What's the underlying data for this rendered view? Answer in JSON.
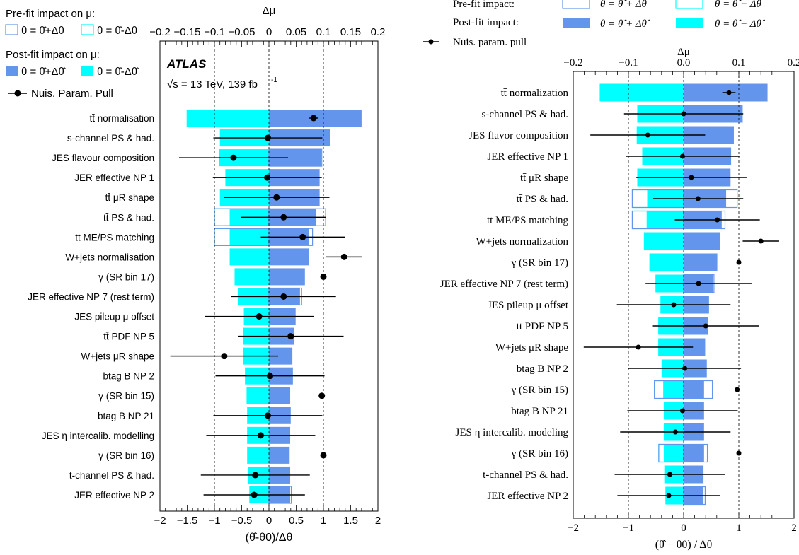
{
  "colors": {
    "postfit_plus": "#6495ED",
    "postfit_minus": "#00FFFF",
    "prefit_plus_border": "#6495ED",
    "prefit_minus_border": "#00FFFF",
    "pull_marker": "#000000"
  },
  "chart_data": [
    {
      "type": "bar",
      "panel": "left",
      "experiment_label": "ATLAS",
      "energy_label": "√s = 13 TeV, 139 fb",
      "energy_superscript": "-1",
      "legend": {
        "prefit_title": "Pre-fit impact on μ:",
        "prefit_plus": "θ = θ̂+Δθ",
        "prefit_minus": "θ = θ̂-Δθ",
        "postfit_title": "Post-fit impact on μ:",
        "postfit_plus": "θ = θ̂+Δθ̂",
        "postfit_minus": "θ = θ̂-Δθ̂",
        "pull": "Nuis. Param. Pull"
      },
      "xlabel_bottom": "(θ̂-θ0)/Δθ",
      "xlabel_top": "Δμ",
      "xlim_bottom": [
        -2,
        2
      ],
      "xlim_top": [
        -0.2,
        0.2
      ],
      "xticks_bottom": [
        "−2",
        "−1.5",
        "−1",
        "−0.5",
        "0",
        "0.5",
        "1",
        "1.5",
        "2"
      ],
      "xticks_top": [
        "−0.2",
        "−0.15",
        "−0.1",
        "−0.05",
        "0",
        "0.05",
        "0.1",
        "0.15",
        "0.2"
      ],
      "categories": [
        "tt̄ normalisation",
        "s-channel PS & had.",
        "JES flavour composition",
        "JER effective NP 1",
        "tt̄ μR shape",
        "tt̄ PS & had.",
        "tt̄ ME/PS matching",
        "W+jets normalisation",
        "γ (SR bin 17)",
        "JER effective NP 7 (rest term)",
        "JES pileup μ offset",
        "tt̄ PDF NP 5",
        "W+jets μR shape",
        "btag B NP 2",
        "γ (SR bin 15)",
        "btag B NP 21",
        "JES η intercalib. modelling",
        "γ (SR bin 16)",
        "t-channel PS & had.",
        "JER effective NP 2"
      ],
      "series": [
        {
          "name": "θ = θ̂+Δθ̂",
          "values": [
            0.17,
            0.113,
            0.095,
            0.093,
            0.093,
            0.086,
            0.073,
            0.073,
            0.066,
            0.057,
            0.049,
            0.046,
            0.043,
            0.044,
            0.039,
            0.04,
            0.039,
            0.038,
            0.039,
            0.039
          ]
        },
        {
          "name": "θ = θ̂-Δθ̂",
          "values": [
            -0.151,
            -0.09,
            -0.091,
            -0.08,
            -0.09,
            -0.072,
            -0.072,
            -0.072,
            -0.063,
            -0.056,
            -0.046,
            -0.048,
            -0.048,
            -0.044,
            -0.041,
            -0.04,
            -0.04,
            -0.04,
            -0.039,
            -0.036
          ]
        },
        {
          "name": "θ = θ̂+Δθ",
          "values": [
            0.17,
            0.113,
            0.097,
            0.093,
            0.093,
            0.104,
            0.08,
            0.073,
            0.066,
            0.06,
            0.049,
            0.046,
            0.043,
            0.044,
            0.039,
            0.04,
            0.039,
            0.038,
            0.039,
            0.041
          ]
        },
        {
          "name": "θ = θ̂-Δθ",
          "values": [
            -0.151,
            -0.09,
            -0.091,
            -0.08,
            -0.09,
            -0.1,
            -0.1,
            -0.072,
            -0.063,
            -0.056,
            -0.046,
            -0.048,
            -0.048,
            -0.044,
            -0.041,
            -0.04,
            -0.04,
            -0.04,
            -0.039,
            -0.036
          ]
        },
        {
          "name": "Nuis. Param. Pull",
          "values": [
            0.82,
            -0.02,
            -0.65,
            -0.03,
            0.14,
            0.27,
            0.62,
            1.38,
            1.0,
            0.27,
            -0.18,
            0.4,
            -0.82,
            0.02,
            0.97,
            -0.02,
            -0.15,
            1.0,
            -0.25,
            -0.27
          ]
        },
        {
          "name": "pull_error",
          "values": [
            0.09,
            1.0,
            1.0,
            1.0,
            0.97,
            0.78,
            0.77,
            0.33,
            0,
            0.96,
            1.0,
            0.97,
            0.99,
            1.0,
            0,
            1.0,
            1.0,
            0,
            1.0,
            0.93
          ]
        }
      ]
    },
    {
      "type": "bar",
      "panel": "right",
      "legend": {
        "prefit_title": "Pre-fit impact:",
        "prefit_plus": "θ = θ̂ + Δθ",
        "prefit_minus": "θ = θ̂ − Δθ",
        "postfit_title": "Post-fit impact:",
        "postfit_plus": "θ = θ̂ + Δθ̂",
        "postfit_minus": "θ = θ̂ − Δθ̂",
        "pull": "Nuis. param. pull"
      },
      "xlabel_bottom": "(θ̂ − θ0) / Δθ",
      "xlabel_top": "Δμ",
      "xlim_bottom": [
        -2,
        2
      ],
      "xlim_top": [
        -0.2,
        0.2
      ],
      "xticks_bottom": [
        "−2",
        "−1",
        "0",
        "1",
        "2"
      ],
      "xticks_top": [
        "−0.2",
        "−0.1",
        "0.0",
        "0.1",
        "0.2"
      ],
      "categories": [
        "tt̄ normalization",
        "s-channel PS & had.",
        "JES flavor composition",
        "JER effective NP 1",
        "tt̄ μR shape",
        "tt̄ PS & had.",
        "tt̄ ME/PS matching",
        "W+jets normalization",
        "γ (SR bin 17)",
        "JER effective NP 7 (rest term)",
        "JES pileup μ offset",
        "tt̄ PDF NP 5",
        "W+jets μR shape",
        "btag B NP 2",
        "γ (SR bin 15)",
        "btag B NP 21",
        "JES η intercalib. modeling",
        "γ (SR bin 16)",
        "t-channel PS & had.",
        "JER effective NP 2"
      ],
      "series": [
        {
          "name": "θ = θ̂ + Δθ̂",
          "values": [
            0.152,
            0.107,
            0.091,
            0.086,
            0.085,
            0.077,
            0.069,
            0.066,
            0.061,
            0.053,
            0.046,
            0.044,
            0.039,
            0.042,
            0.037,
            0.037,
            0.037,
            0.037,
            0.036,
            0.036
          ]
        },
        {
          "name": "θ = θ̂ − Δθ̂",
          "values": [
            -0.152,
            -0.084,
            -0.085,
            -0.075,
            -0.084,
            -0.066,
            -0.067,
            -0.072,
            -0.062,
            -0.051,
            -0.042,
            -0.046,
            -0.046,
            -0.04,
            -0.037,
            -0.036,
            -0.036,
            -0.036,
            -0.035,
            -0.033
          ]
        },
        {
          "name": "θ = θ̂ + Δθ",
          "values": [
            0.152,
            0.107,
            0.091,
            0.086,
            0.085,
            0.097,
            0.075,
            0.066,
            0.061,
            0.055,
            0.046,
            0.044,
            0.039,
            0.042,
            0.052,
            0.037,
            0.037,
            0.043,
            0.036,
            0.039
          ]
        },
        {
          "name": "θ = θ̂ − Δθ",
          "values": [
            -0.152,
            -0.084,
            -0.085,
            -0.075,
            -0.084,
            -0.093,
            -0.093,
            -0.072,
            -0.062,
            -0.051,
            -0.042,
            -0.046,
            -0.046,
            -0.04,
            -0.053,
            -0.036,
            -0.036,
            -0.045,
            -0.035,
            -0.033
          ]
        },
        {
          "name": "Nuis. param. pull",
          "values": [
            0.82,
            0.0,
            -0.65,
            -0.02,
            0.14,
            0.26,
            0.61,
            1.4,
            1.0,
            0.27,
            -0.18,
            0.4,
            -0.82,
            0.02,
            0.97,
            -0.02,
            -0.15,
            1.0,
            -0.25,
            -0.27
          ]
        },
        {
          "name": "pull_error",
          "values": [
            0.12,
            1.08,
            1.04,
            1.03,
            1.0,
            0.82,
            0.77,
            0.33,
            0,
            0.96,
            1.03,
            0.97,
            0.99,
            1.02,
            0,
            1.0,
            1.0,
            0,
            1.0,
            0.93
          ]
        }
      ]
    }
  ]
}
